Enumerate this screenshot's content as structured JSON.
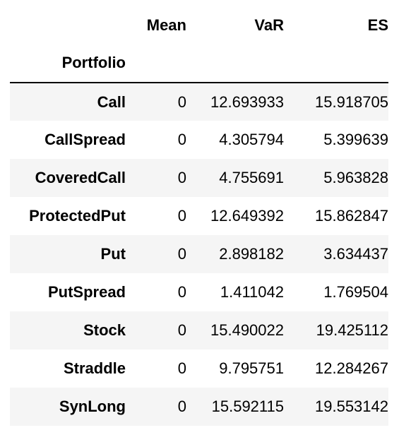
{
  "table": {
    "columns": [
      "Mean",
      "VaR",
      "ES"
    ],
    "index_name": "Portfolio",
    "rows": [
      {
        "portfolio": "Call",
        "mean": "0",
        "var": "12.693933",
        "es": "15.918705"
      },
      {
        "portfolio": "CallSpread",
        "mean": "0",
        "var": "4.305794",
        "es": "5.399639"
      },
      {
        "portfolio": "CoveredCall",
        "mean": "0",
        "var": "4.755691",
        "es": "5.963828"
      },
      {
        "portfolio": "ProtectedPut",
        "mean": "0",
        "var": "12.649392",
        "es": "15.862847"
      },
      {
        "portfolio": "Put",
        "mean": "0",
        "var": "2.898182",
        "es": "3.634437"
      },
      {
        "portfolio": "PutSpread",
        "mean": "0",
        "var": "1.411042",
        "es": "1.769504"
      },
      {
        "portfolio": "Stock",
        "mean": "0",
        "var": "15.490022",
        "es": "19.425112"
      },
      {
        "portfolio": "Straddle",
        "mean": "0",
        "var": "9.795751",
        "es": "12.284267"
      },
      {
        "portfolio": "SynLong",
        "mean": "0",
        "var": "15.592115",
        "es": "19.553142"
      }
    ]
  }
}
